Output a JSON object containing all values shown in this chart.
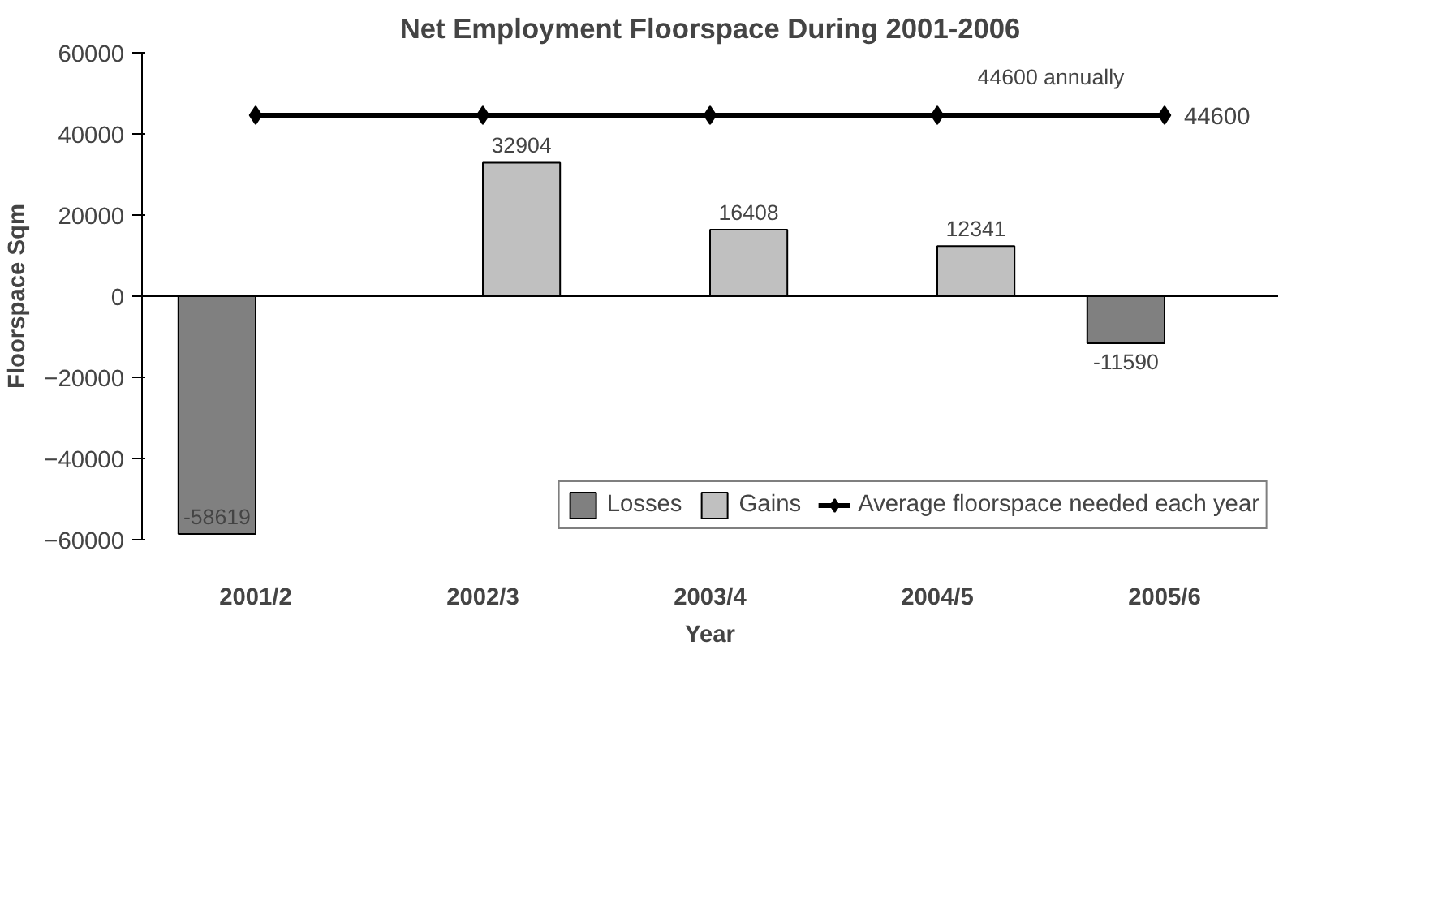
{
  "chart_data": {
    "type": "bar",
    "title": "Net Employment Floorspace During 2001-2006",
    "xlabel": "Year",
    "ylabel": "Floorspace Sqm",
    "categories": [
      "2001/2",
      "2002/3",
      "2003/4",
      "2004/5",
      "2005/6"
    ],
    "series": [
      {
        "name": "Losses",
        "color": "#808080",
        "values": [
          -58619,
          null,
          null,
          null,
          -11590
        ],
        "value_labels": [
          "-58619",
          null,
          null,
          null,
          "-11590"
        ]
      },
      {
        "name": "Gains",
        "color": "#c0c0c0",
        "values": [
          null,
          32904,
          16408,
          12341,
          null
        ],
        "value_labels": [
          null,
          "32904",
          "16408",
          "12341",
          null
        ]
      },
      {
        "name": "Average floorspace needed each year",
        "type": "line",
        "color": "#000000",
        "marker": "diamond",
        "values": [
          44600,
          44600,
          44600,
          44600,
          44600
        ],
        "value_labels": [
          null,
          null,
          null,
          null,
          "44600"
        ]
      }
    ],
    "annotations": [
      {
        "text": "44600 annually",
        "y": 44600
      }
    ],
    "ylim": [
      -60000,
      60000
    ],
    "yticks": [
      -60000,
      -40000,
      -20000,
      0,
      20000,
      40000,
      60000
    ],
    "grid": false,
    "legend": "bottom"
  }
}
